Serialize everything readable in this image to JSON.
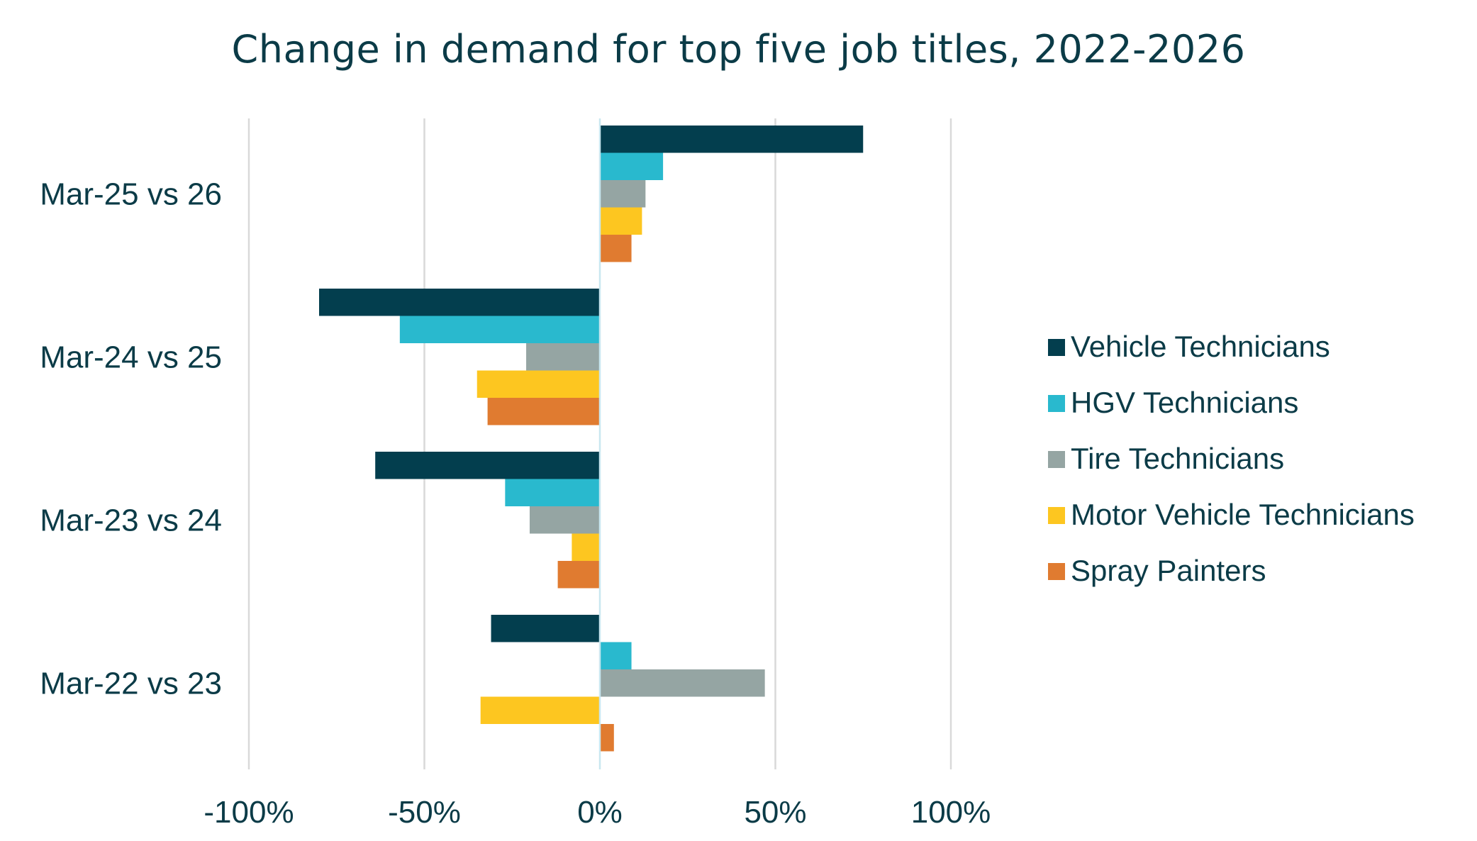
{
  "chart_data": {
    "type": "bar",
    "orientation": "horizontal",
    "title": "Change in demand for top five job titles, 2022-2026",
    "categories": [
      "Mar-25 vs 26",
      "Mar-24 vs 25",
      "Mar-23 vs 24",
      "Mar-22 vs 23"
    ],
    "series": [
      {
        "name": "Vehicle Technicians",
        "color": "#033e4e",
        "values": [
          75,
          -80,
          -64,
          -31
        ]
      },
      {
        "name": "HGV Technicians",
        "color": "#29b9ce",
        "values": [
          18,
          -57,
          -27,
          9
        ]
      },
      {
        "name": "Tire Technicians",
        "color": "#95a5a3",
        "values": [
          13,
          -21,
          -20,
          47
        ]
      },
      {
        "name": "Motor Vehicle Technicians",
        "color": "#fdc620",
        "values": [
          12,
          -35,
          -8,
          -34
        ]
      },
      {
        "name": "Spray Painters",
        "color": "#e07b30",
        "values": [
          9,
          -32,
          -12,
          4
        ]
      }
    ],
    "xlim": [
      -100,
      100
    ],
    "x_ticks": [
      -100,
      -50,
      0,
      50,
      100
    ],
    "x_tick_labels": [
      "-100%",
      "-50%",
      "0%",
      "50%",
      "100%"
    ],
    "grid": true,
    "legend_position": "right"
  }
}
